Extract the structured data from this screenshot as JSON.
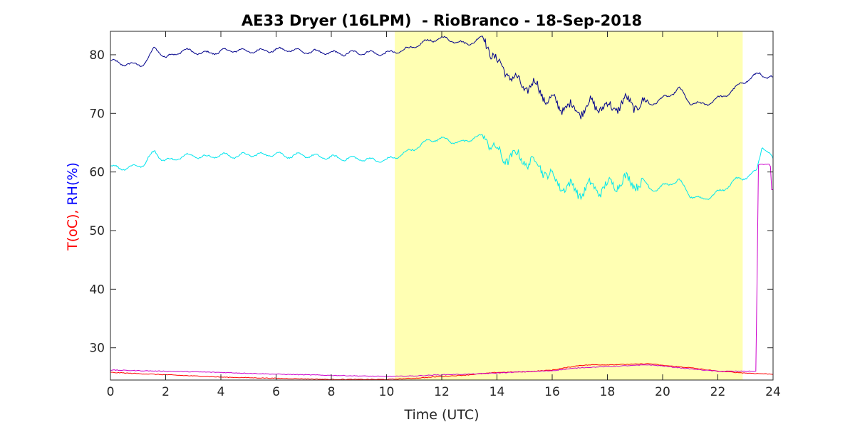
{
  "chart_data": {
    "type": "line",
    "title": "AE33 Dryer (16LPM)  - RioBranco - 18-Sep-2018",
    "xlabel": "Time (UTC)",
    "ylabel_parts": [
      {
        "text": "T(oC), ",
        "color": "#ff0000"
      },
      {
        "text": "RH(%)",
        "color": "#0000ff"
      }
    ],
    "xlim": [
      0,
      24
    ],
    "ylim": [
      24.5,
      84
    ],
    "xticks": [
      0,
      2,
      4,
      6,
      8,
      10,
      12,
      14,
      16,
      18,
      20,
      22,
      24
    ],
    "yticks": [
      30,
      40,
      50,
      60,
      70,
      80
    ],
    "grid": false,
    "shaded_span": {
      "x_start": 10.3,
      "x_end": 22.9,
      "color": "#ffffb3"
    },
    "series": [
      {
        "color": "#00008b",
        "x": [
          0,
          0.3,
          0.6,
          0.9,
          1.2,
          1.4,
          1.6,
          1.8,
          2.0,
          2.3,
          2.6,
          3.0,
          3.5,
          4.0,
          4.5,
          5.0,
          5.5,
          6.0,
          6.5,
          7.0,
          7.5,
          8.0,
          8.5,
          9.0,
          9.5,
          10.0,
          10.3,
          10.8,
          11.2,
          11.6,
          12.0,
          12.4,
          12.8,
          13.2,
          13.5,
          13.8,
          14.0,
          14.3,
          14.6,
          15.0,
          15.4,
          15.8,
          16.2,
          16.6,
          17.0,
          17.4,
          17.8,
          18.2,
          18.6,
          19.0,
          19.4,
          19.8,
          20.2,
          20.6,
          21.0,
          21.4,
          21.8,
          22.2,
          22.6,
          22.9,
          23.2,
          23.5,
          23.8,
          24.0
        ],
        "y": [
          79,
          78.5,
          78.5,
          78.2,
          78.5,
          79.5,
          81.2,
          80.5,
          79.5,
          80,
          80.8,
          80.5,
          80.2,
          80.6,
          80.8,
          80.6,
          80.7,
          80.8,
          80.9,
          80.5,
          80.5,
          80.3,
          80.2,
          80.4,
          80.3,
          80.2,
          80.5,
          81,
          81.8,
          82.5,
          82.8,
          82.5,
          81.8,
          82.3,
          83.0,
          80.5,
          78.5,
          77.5,
          75.8,
          74.5,
          74.8,
          72.5,
          71.5,
          71,
          70.5,
          71.5,
          71.2,
          70.8,
          72,
          71.5,
          71.5,
          72,
          73,
          74.2,
          71.8,
          71.5,
          72,
          73,
          74,
          75.5,
          75.8,
          77,
          76,
          76
        ]
      },
      {
        "color": "#00e5ee",
        "x": [
          0,
          0.3,
          0.6,
          0.9,
          1.2,
          1.4,
          1.6,
          1.8,
          2.0,
          2.3,
          2.6,
          3.0,
          3.5,
          4.0,
          4.5,
          5.0,
          5.5,
          6.0,
          6.5,
          7.0,
          7.5,
          8.0,
          8.5,
          9.0,
          9.5,
          10.0,
          10.3,
          10.8,
          11.2,
          11.6,
          12.0,
          12.4,
          12.8,
          13.2,
          13.5,
          13.8,
          14.0,
          14.2,
          14.5,
          15.0,
          15.4,
          15.8,
          16.2,
          16.6,
          17.0,
          17.4,
          17.8,
          18.2,
          18.6,
          19.0,
          19.4,
          19.8,
          20.2,
          20.6,
          21.0,
          21.4,
          21.8,
          22.2,
          22.6,
          22.9,
          23.2,
          23.4,
          23.6,
          23.8,
          24.0
        ],
        "y": [
          61,
          60.6,
          60.8,
          60.9,
          61.3,
          62.5,
          63.5,
          62.5,
          62,
          62,
          62.8,
          62.8,
          62.5,
          62.9,
          62.7,
          63,
          62.9,
          63.1,
          62.7,
          62.9,
          62.6,
          62.5,
          62.3,
          62.3,
          62,
          62,
          62.5,
          63.5,
          64.5,
          65.5,
          65.7,
          65.2,
          65,
          66,
          66,
          65,
          63.5,
          62,
          63,
          62,
          61.5,
          60,
          58,
          57.5,
          56.5,
          57.5,
          57,
          58,
          58.5,
          58.3,
          57.5,
          57,
          58,
          58.5,
          56,
          55.3,
          56,
          57,
          58.5,
          59,
          59.5,
          60,
          64.5,
          63.5,
          62
        ]
      },
      {
        "color": "#ff0000",
        "x": [
          0,
          1,
          2,
          3,
          4,
          5,
          6,
          7,
          8,
          9,
          10,
          11,
          12,
          13,
          14,
          15,
          16,
          16.5,
          17,
          17.5,
          18,
          19,
          19.5,
          20,
          21,
          22,
          23,
          24
        ],
        "y": [
          25.8,
          25.6,
          25.4,
          25.2,
          25.0,
          24.9,
          24.8,
          24.7,
          24.6,
          24.6,
          24.6,
          24.8,
          25.1,
          25.4,
          25.8,
          25.9,
          26.2,
          26.6,
          27.0,
          27.1,
          27.1,
          27.2,
          27.3,
          27.0,
          26.6,
          26.0,
          25.7,
          25.5
        ]
      },
      {
        "color": "#cc00cc",
        "x": [
          0,
          2,
          4,
          6,
          8,
          10,
          11,
          12,
          13,
          14,
          15,
          16,
          17,
          18,
          19,
          19.5,
          20,
          21,
          22,
          23,
          23.4,
          23.45,
          23.5,
          23.9,
          23.95,
          24.0
        ],
        "y": [
          26.2,
          26.0,
          25.8,
          25.5,
          25.3,
          25.1,
          25.2,
          25.4,
          25.5,
          25.7,
          25.9,
          26.1,
          26.6,
          26.8,
          27.0,
          27.1,
          26.9,
          26.4,
          26.0,
          26.0,
          26.0,
          61.2,
          61.3,
          61.3,
          57.0,
          57.0
        ]
      }
    ]
  }
}
